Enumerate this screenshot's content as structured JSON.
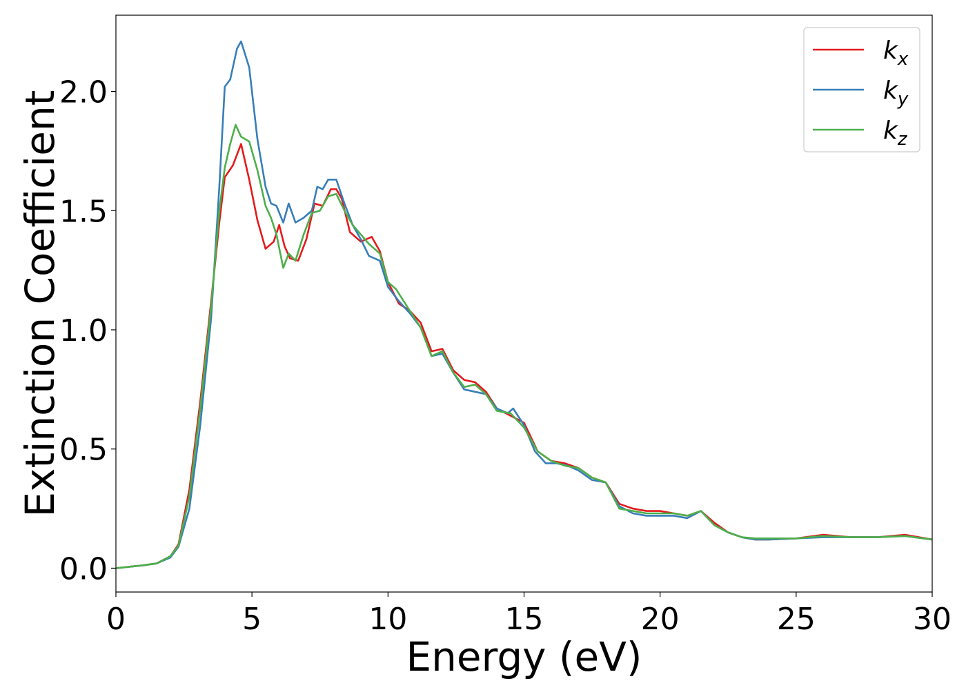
{
  "chart_data": {
    "type": "line",
    "xlabel": "Energy (eV)",
    "ylabel": "Extinction Coefficient",
    "xlim": [
      0,
      30
    ],
    "ylim": [
      -0.1,
      2.32
    ],
    "xticks": [
      0,
      5,
      10,
      15,
      20,
      25,
      30
    ],
    "xtick_labels": [
      "0",
      "5",
      "10",
      "15",
      "20",
      "25",
      "30"
    ],
    "yticks": [
      0.0,
      0.5,
      1.0,
      1.5,
      2.0
    ],
    "ytick_labels": [
      "0.0",
      "0.5",
      "1.0",
      "1.5",
      "2.0"
    ],
    "grid": false,
    "legend_position": "top-right",
    "series": [
      {
        "name": "k_x",
        "label_main": "k",
        "label_sub": "x",
        "color": "#e41a1c",
        "points": [
          [
            0,
            0
          ],
          [
            1,
            0.012
          ],
          [
            1.5,
            0.02
          ],
          [
            2.0,
            0.05
          ],
          [
            2.3,
            0.1
          ],
          [
            2.7,
            0.33
          ],
          [
            3.1,
            0.7
          ],
          [
            3.5,
            1.12
          ],
          [
            3.8,
            1.45
          ],
          [
            4.0,
            1.64
          ],
          [
            4.3,
            1.69
          ],
          [
            4.6,
            1.78
          ],
          [
            4.9,
            1.63
          ],
          [
            5.2,
            1.46
          ],
          [
            5.5,
            1.34
          ],
          [
            5.8,
            1.37
          ],
          [
            6.0,
            1.44
          ],
          [
            6.2,
            1.35
          ],
          [
            6.4,
            1.3
          ],
          [
            6.7,
            1.29
          ],
          [
            7.0,
            1.38
          ],
          [
            7.3,
            1.53
          ],
          [
            7.6,
            1.52
          ],
          [
            7.9,
            1.59
          ],
          [
            8.1,
            1.59
          ],
          [
            8.3,
            1.55
          ],
          [
            8.6,
            1.41
          ],
          [
            9.0,
            1.37
          ],
          [
            9.4,
            1.39
          ],
          [
            9.7,
            1.33
          ],
          [
            10.0,
            1.2
          ],
          [
            10.4,
            1.11
          ],
          [
            10.8,
            1.08
          ],
          [
            11.2,
            1.03
          ],
          [
            11.6,
            0.91
          ],
          [
            12.0,
            0.92
          ],
          [
            12.4,
            0.83
          ],
          [
            12.8,
            0.79
          ],
          [
            13.2,
            0.78
          ],
          [
            13.6,
            0.74
          ],
          [
            14.0,
            0.67
          ],
          [
            14.5,
            0.64
          ],
          [
            15.0,
            0.61
          ],
          [
            15.5,
            0.49
          ],
          [
            16.0,
            0.45
          ],
          [
            16.5,
            0.44
          ],
          [
            17.0,
            0.42
          ],
          [
            17.5,
            0.38
          ],
          [
            18.0,
            0.36
          ],
          [
            18.5,
            0.27
          ],
          [
            19.0,
            0.25
          ],
          [
            19.5,
            0.24
          ],
          [
            20.0,
            0.24
          ],
          [
            20.5,
            0.23
          ],
          [
            21.0,
            0.22
          ],
          [
            21.5,
            0.24
          ],
          [
            22.0,
            0.19
          ],
          [
            22.5,
            0.15
          ],
          [
            23.0,
            0.13
          ],
          [
            23.5,
            0.12
          ],
          [
            24.0,
            0.12
          ],
          [
            25.0,
            0.125
          ],
          [
            26.0,
            0.14
          ],
          [
            27.0,
            0.13
          ],
          [
            28.0,
            0.13
          ],
          [
            29.0,
            0.14
          ],
          [
            30.0,
            0.12
          ]
        ]
      },
      {
        "name": "k_y",
        "label_main": "k",
        "label_sub": "y",
        "color": "#377eb8",
        "points": [
          [
            0,
            0
          ],
          [
            1,
            0.012
          ],
          [
            1.5,
            0.02
          ],
          [
            2.0,
            0.045
          ],
          [
            2.3,
            0.09
          ],
          [
            2.7,
            0.25
          ],
          [
            3.1,
            0.6
          ],
          [
            3.5,
            1.05
          ],
          [
            3.8,
            1.6
          ],
          [
            4.0,
            2.02
          ],
          [
            4.2,
            2.05
          ],
          [
            4.45,
            2.18
          ],
          [
            4.6,
            2.21
          ],
          [
            4.9,
            2.1
          ],
          [
            5.2,
            1.8
          ],
          [
            5.5,
            1.6
          ],
          [
            5.7,
            1.53
          ],
          [
            5.9,
            1.52
          ],
          [
            6.15,
            1.45
          ],
          [
            6.35,
            1.53
          ],
          [
            6.6,
            1.45
          ],
          [
            6.9,
            1.47
          ],
          [
            7.2,
            1.5
          ],
          [
            7.4,
            1.6
          ],
          [
            7.6,
            1.59
          ],
          [
            7.8,
            1.63
          ],
          [
            8.1,
            1.63
          ],
          [
            8.4,
            1.53
          ],
          [
            8.7,
            1.44
          ],
          [
            9.0,
            1.38
          ],
          [
            9.3,
            1.31
          ],
          [
            9.7,
            1.29
          ],
          [
            10.0,
            1.18
          ],
          [
            10.4,
            1.12
          ],
          [
            10.8,
            1.07
          ],
          [
            11.2,
            1.01
          ],
          [
            11.6,
            0.89
          ],
          [
            12.0,
            0.9
          ],
          [
            12.4,
            0.82
          ],
          [
            12.8,
            0.75
          ],
          [
            13.2,
            0.74
          ],
          [
            13.6,
            0.73
          ],
          [
            14.0,
            0.67
          ],
          [
            14.4,
            0.65
          ],
          [
            14.6,
            0.67
          ],
          [
            15.0,
            0.6
          ],
          [
            15.4,
            0.49
          ],
          [
            15.8,
            0.44
          ],
          [
            16.2,
            0.44
          ],
          [
            16.6,
            0.43
          ],
          [
            17.0,
            0.41
          ],
          [
            17.5,
            0.37
          ],
          [
            18.0,
            0.36
          ],
          [
            18.5,
            0.26
          ],
          [
            19.0,
            0.23
          ],
          [
            19.5,
            0.22
          ],
          [
            20.0,
            0.22
          ],
          [
            20.5,
            0.22
          ],
          [
            21.0,
            0.21
          ],
          [
            21.5,
            0.24
          ],
          [
            22.0,
            0.18
          ],
          [
            22.5,
            0.15
          ],
          [
            23.0,
            0.13
          ],
          [
            23.5,
            0.12
          ],
          [
            24.0,
            0.12
          ],
          [
            25.0,
            0.125
          ],
          [
            26.0,
            0.13
          ],
          [
            27.0,
            0.13
          ],
          [
            28.0,
            0.13
          ],
          [
            29.0,
            0.135
          ],
          [
            30.0,
            0.12
          ]
        ]
      },
      {
        "name": "k_z",
        "label_main": "k",
        "label_sub": "z",
        "color": "#4daf4a",
        "points": [
          [
            0,
            0
          ],
          [
            1,
            0.012
          ],
          [
            1.5,
            0.02
          ],
          [
            2.0,
            0.05
          ],
          [
            2.3,
            0.095
          ],
          [
            2.7,
            0.3
          ],
          [
            3.1,
            0.67
          ],
          [
            3.5,
            1.1
          ],
          [
            3.8,
            1.5
          ],
          [
            4.0,
            1.68
          ],
          [
            4.2,
            1.78
          ],
          [
            4.4,
            1.86
          ],
          [
            4.6,
            1.81
          ],
          [
            4.9,
            1.79
          ],
          [
            5.2,
            1.67
          ],
          [
            5.5,
            1.52
          ],
          [
            5.7,
            1.47
          ],
          [
            5.9,
            1.4
          ],
          [
            6.15,
            1.26
          ],
          [
            6.35,
            1.32
          ],
          [
            6.6,
            1.29
          ],
          [
            6.9,
            1.4
          ],
          [
            7.2,
            1.49
          ],
          [
            7.5,
            1.5
          ],
          [
            7.8,
            1.56
          ],
          [
            8.1,
            1.57
          ],
          [
            8.4,
            1.5
          ],
          [
            8.7,
            1.44
          ],
          [
            9.0,
            1.4
          ],
          [
            9.3,
            1.36
          ],
          [
            9.7,
            1.32
          ],
          [
            10.0,
            1.2
          ],
          [
            10.3,
            1.17
          ],
          [
            10.8,
            1.08
          ],
          [
            11.2,
            1.01
          ],
          [
            11.6,
            0.89
          ],
          [
            12.0,
            0.91
          ],
          [
            12.4,
            0.82
          ],
          [
            12.8,
            0.76
          ],
          [
            13.2,
            0.77
          ],
          [
            13.6,
            0.73
          ],
          [
            14.0,
            0.66
          ],
          [
            14.5,
            0.65
          ],
          [
            15.0,
            0.59
          ],
          [
            15.5,
            0.49
          ],
          [
            16.0,
            0.45
          ],
          [
            16.5,
            0.43
          ],
          [
            17.0,
            0.42
          ],
          [
            17.5,
            0.38
          ],
          [
            18.0,
            0.36
          ],
          [
            18.5,
            0.25
          ],
          [
            19.0,
            0.24
          ],
          [
            19.5,
            0.23
          ],
          [
            20.0,
            0.23
          ],
          [
            20.5,
            0.23
          ],
          [
            21.0,
            0.22
          ],
          [
            21.5,
            0.24
          ],
          [
            22.0,
            0.18
          ],
          [
            22.5,
            0.15
          ],
          [
            23.0,
            0.13
          ],
          [
            23.5,
            0.125
          ],
          [
            24.0,
            0.125
          ],
          [
            25.0,
            0.125
          ],
          [
            26.0,
            0.135
          ],
          [
            27.0,
            0.13
          ],
          [
            28.0,
            0.13
          ],
          [
            29.0,
            0.135
          ],
          [
            30.0,
            0.12
          ]
        ]
      }
    ]
  }
}
